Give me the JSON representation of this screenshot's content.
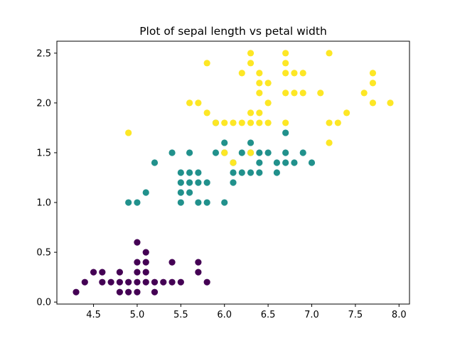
{
  "chart_data": {
    "type": "scatter",
    "title": "Plot of sepal length vs petal width",
    "xlabel": "",
    "ylabel": "",
    "xlim": [
      4.08,
      8.12
    ],
    "ylim": [
      -0.02,
      2.62
    ],
    "x_ticks": [
      "4.5",
      "5.0",
      "5.5",
      "6.0",
      "6.5",
      "7.0",
      "7.5",
      "8.0"
    ],
    "y_ticks": [
      "0.0",
      "0.5",
      "1.0",
      "1.5",
      "2.0",
      "2.5"
    ],
    "grid": false,
    "series": [
      {
        "color": "#440154",
        "points": [
          [
            4.3,
            0.1
          ],
          [
            4.4,
            0.2
          ],
          [
            4.5,
            0.3
          ],
          [
            4.6,
            0.2
          ],
          [
            4.6,
            0.3
          ],
          [
            4.7,
            0.2
          ],
          [
            4.8,
            0.1
          ],
          [
            4.8,
            0.2
          ],
          [
            4.8,
            0.3
          ],
          [
            4.9,
            0.1
          ],
          [
            4.9,
            0.2
          ],
          [
            5.0,
            0.2
          ],
          [
            5.0,
            0.3
          ],
          [
            5.0,
            0.4
          ],
          [
            5.0,
            0.6
          ],
          [
            5.0,
            0.1
          ],
          [
            5.1,
            0.2
          ],
          [
            5.1,
            0.3
          ],
          [
            5.1,
            0.4
          ],
          [
            5.1,
            0.5
          ],
          [
            5.2,
            0.1
          ],
          [
            5.2,
            0.2
          ],
          [
            5.3,
            0.2
          ],
          [
            5.4,
            0.2
          ],
          [
            5.4,
            0.4
          ],
          [
            5.5,
            0.2
          ],
          [
            5.7,
            0.3
          ],
          [
            5.7,
            0.4
          ],
          [
            5.8,
            0.2
          ]
        ]
      },
      {
        "color": "#21918c",
        "points": [
          [
            4.9,
            1.0
          ],
          [
            5.0,
            1.0
          ],
          [
            5.1,
            1.1
          ],
          [
            5.2,
            1.4
          ],
          [
            5.4,
            1.5
          ],
          [
            5.5,
            1.0
          ],
          [
            5.5,
            1.1
          ],
          [
            5.5,
            1.2
          ],
          [
            5.5,
            1.3
          ],
          [
            5.6,
            1.1
          ],
          [
            5.6,
            1.2
          ],
          [
            5.6,
            1.3
          ],
          [
            5.6,
            1.5
          ],
          [
            5.7,
            1.0
          ],
          [
            5.7,
            1.2
          ],
          [
            5.7,
            1.3
          ],
          [
            5.8,
            1.0
          ],
          [
            5.8,
            1.2
          ],
          [
            5.9,
            1.5
          ],
          [
            6.0,
            1.0
          ],
          [
            6.0,
            1.5
          ],
          [
            6.0,
            1.6
          ],
          [
            6.1,
            1.2
          ],
          [
            6.1,
            1.3
          ],
          [
            6.1,
            1.4
          ],
          [
            6.2,
            1.3
          ],
          [
            6.2,
            1.5
          ],
          [
            6.3,
            1.3
          ],
          [
            6.3,
            1.5
          ],
          [
            6.3,
            1.6
          ],
          [
            6.4,
            1.3
          ],
          [
            6.4,
            1.4
          ],
          [
            6.4,
            1.5
          ],
          [
            6.5,
            1.5
          ],
          [
            6.6,
            1.3
          ],
          [
            6.6,
            1.4
          ],
          [
            6.7,
            1.4
          ],
          [
            6.7,
            1.5
          ],
          [
            6.7,
            1.7
          ],
          [
            6.8,
            1.4
          ],
          [
            6.9,
            1.5
          ],
          [
            7.0,
            1.4
          ],
          [
            5.9,
            1.8
          ]
        ]
      },
      {
        "color": "#fde725",
        "points": [
          [
            4.9,
            1.7
          ],
          [
            5.6,
            2.0
          ],
          [
            5.7,
            2.0
          ],
          [
            5.8,
            1.9
          ],
          [
            5.8,
            2.4
          ],
          [
            5.9,
            1.8
          ],
          [
            6.0,
            1.5
          ],
          [
            6.0,
            1.8
          ],
          [
            6.1,
            1.4
          ],
          [
            6.1,
            1.8
          ],
          [
            6.2,
            1.8
          ],
          [
            6.2,
            2.3
          ],
          [
            6.3,
            1.5
          ],
          [
            6.3,
            1.8
          ],
          [
            6.3,
            1.9
          ],
          [
            6.3,
            2.4
          ],
          [
            6.3,
            2.5
          ],
          [
            6.4,
            1.8
          ],
          [
            6.4,
            1.9
          ],
          [
            6.4,
            2.1
          ],
          [
            6.4,
            2.2
          ],
          [
            6.4,
            2.3
          ],
          [
            6.5,
            1.8
          ],
          [
            6.5,
            2.0
          ],
          [
            6.5,
            2.2
          ],
          [
            6.7,
            1.8
          ],
          [
            6.7,
            2.1
          ],
          [
            6.7,
            2.3
          ],
          [
            6.7,
            2.4
          ],
          [
            6.7,
            2.5
          ],
          [
            6.8,
            2.1
          ],
          [
            6.8,
            2.3
          ],
          [
            6.9,
            2.1
          ],
          [
            6.9,
            2.3
          ],
          [
            7.1,
            2.1
          ],
          [
            7.2,
            1.6
          ],
          [
            7.2,
            1.8
          ],
          [
            7.2,
            2.5
          ],
          [
            7.3,
            1.8
          ],
          [
            7.4,
            1.9
          ],
          [
            7.6,
            2.1
          ],
          [
            7.7,
            2.0
          ],
          [
            7.7,
            2.2
          ],
          [
            7.7,
            2.3
          ],
          [
            7.9,
            2.0
          ]
        ]
      }
    ]
  }
}
